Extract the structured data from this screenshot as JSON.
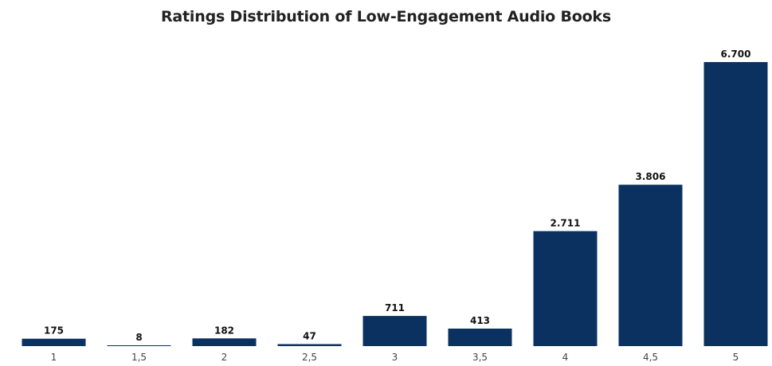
{
  "chart_data": {
    "type": "bar",
    "title": "Ratings Distribution of Low-Engagement Audio Books",
    "xlabel": "",
    "ylabel": "",
    "categories": [
      "1",
      "1,5",
      "2",
      "2,5",
      "3",
      "3,5",
      "4",
      "4,5",
      "5"
    ],
    "values": [
      175,
      8,
      182,
      47,
      711,
      413,
      2711,
      3806,
      6700
    ],
    "value_labels": [
      "175",
      "8",
      "182",
      "47",
      "711",
      "413",
      "2.711",
      "3.806",
      "6.700"
    ],
    "ylim": [
      0,
      6700
    ],
    "grid": false,
    "legend": "none",
    "bar_color": "#0b3160"
  }
}
